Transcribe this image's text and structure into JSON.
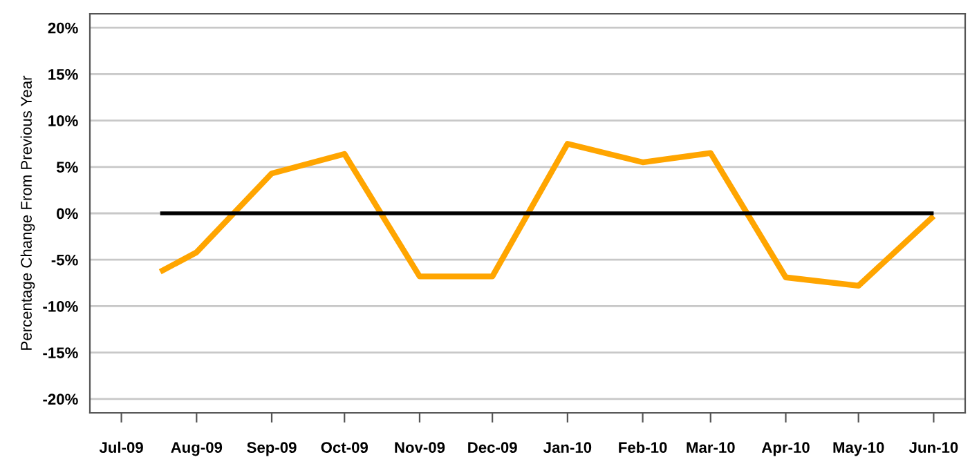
{
  "chart_data": {
    "type": "line",
    "ylabel": "Percentage Change From Previous Year",
    "series": [
      {
        "color": "#ffa500",
        "x": [
          "2009-07-17",
          "2009-08-01",
          "2009-09-01",
          "2009-10-01",
          "2009-11-01",
          "2009-12-01",
          "2010-01-01",
          "2010-02-01",
          "2010-03-01",
          "2010-04-01",
          "2010-05-01",
          "2010-06-01"
        ],
        "values": [
          -6.3,
          -4.2,
          4.3,
          6.4,
          -6.8,
          -6.8,
          7.5,
          5.5,
          6.5,
          -6.9,
          -7.8,
          -0.3
        ]
      },
      {
        "color": "#000000",
        "x": [
          "2009-07-17",
          "2010-06-01"
        ],
        "values": [
          0,
          0
        ]
      }
    ],
    "xlim": [
      "2009-06-18",
      "2010-06-14"
    ],
    "xticks": [
      {
        "value": "2009-07-01",
        "label": "Jul-09"
      },
      {
        "value": "2009-08-01",
        "label": "Aug-09"
      },
      {
        "value": "2009-09-01",
        "label": "Sep-09"
      },
      {
        "value": "2009-10-01",
        "label": "Oct-09"
      },
      {
        "value": "2009-11-01",
        "label": "Nov-09"
      },
      {
        "value": "2009-12-01",
        "label": "Dec-09"
      },
      {
        "value": "2010-01-01",
        "label": "Jan-10"
      },
      {
        "value": "2010-02-01",
        "label": "Feb-10"
      },
      {
        "value": "2010-03-01",
        "label": "Mar-10"
      },
      {
        "value": "2010-04-01",
        "label": "Apr-10"
      },
      {
        "value": "2010-05-01",
        "label": "May-10"
      },
      {
        "value": "2010-06-01",
        "label": "Jun-10"
      }
    ],
    "ylim": [
      -21.5,
      21.5
    ],
    "yticks": [
      {
        "value": 20,
        "label": "20%"
      },
      {
        "value": 15,
        "label": "15%"
      },
      {
        "value": 10,
        "label": "10%"
      },
      {
        "value": 5,
        "label": "5%"
      },
      {
        "value": 0,
        "label": "0%"
      },
      {
        "value": -5,
        "label": "-5%"
      },
      {
        "value": -10,
        "label": "-10%"
      },
      {
        "value": -15,
        "label": "-15%"
      },
      {
        "value": -20,
        "label": "-20%"
      }
    ],
    "grid": "y"
  }
}
